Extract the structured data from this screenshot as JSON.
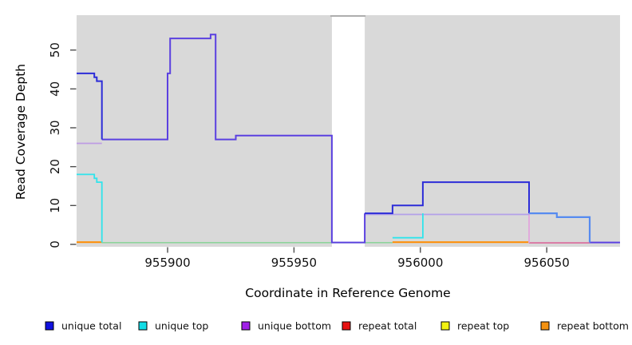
{
  "figure": {
    "kind": "R coverage step plot",
    "background": "#ffffff",
    "plot_background": "#d9d9d9"
  },
  "chart_data": {
    "type": "line",
    "subtype": "step-post",
    "title": "",
    "xlabel": "Coordinate in Reference Genome",
    "ylabel": "Read Coverage Depth",
    "xlim": [
      955864,
      956079
    ],
    "ylim": [
      0,
      59
    ],
    "x_ticks": [
      955900,
      955950,
      956000,
      956050
    ],
    "y_ticks": [
      0,
      10,
      20,
      30,
      40,
      50
    ],
    "grid": false,
    "no_data_band": {
      "from": 955965,
      "to": 955978,
      "color": "#ffffff",
      "top_edge_color": "#a8a8a8"
    },
    "series": [
      {
        "name": "unique total",
        "color": "#1111e0",
        "points": [
          [
            955864,
            44
          ],
          [
            955871,
            43
          ],
          [
            955872,
            42
          ],
          [
            955874,
            27
          ],
          [
            955900,
            44
          ],
          [
            955901,
            53
          ],
          [
            955917,
            54
          ],
          [
            955919,
            27
          ],
          [
            955927,
            28
          ],
          [
            955965,
            0
          ],
          [
            955978,
            8
          ],
          [
            955989,
            10
          ],
          [
            956001,
            16
          ],
          [
            956043,
            8
          ],
          [
            956054,
            7
          ],
          [
            956067,
            0
          ],
          [
            956079,
            0
          ]
        ]
      },
      {
        "name": "unique top",
        "color": "#11dde6",
        "points": [
          [
            955864,
            18
          ],
          [
            955871,
            17
          ],
          [
            955872,
            16
          ],
          [
            955874,
            0
          ],
          [
            955989,
            2
          ],
          [
            956001,
            8
          ],
          [
            956054,
            7
          ],
          [
            956067,
            0
          ],
          [
            956079,
            0
          ]
        ]
      },
      {
        "name": "unique bottom",
        "color": "#a020e8",
        "points": [
          [
            955864,
            26
          ],
          [
            955874,
            27
          ],
          [
            955900,
            44
          ],
          [
            955901,
            53
          ],
          [
            955917,
            54
          ],
          [
            955919,
            27
          ],
          [
            955927,
            28
          ],
          [
            955965,
            0
          ],
          [
            955978,
            8
          ],
          [
            956043,
            0
          ],
          [
            956079,
            0
          ]
        ]
      },
      {
        "name": "repeat total",
        "color": "#e61111",
        "points": [
          [
            955864,
            0
          ],
          [
            956043,
            0
          ],
          [
            956067,
            0
          ],
          [
            956079,
            0
          ]
        ]
      },
      {
        "name": "repeat top",
        "color": "#f2f211",
        "points": [
          [
            955864,
            0
          ],
          [
            956079,
            0
          ]
        ]
      },
      {
        "name": "repeat bottom",
        "color": "#f29111",
        "points": [
          [
            955864,
            0
          ],
          [
            955874,
            0
          ],
          [
            955989,
            0
          ],
          [
            956043,
            0
          ],
          [
            956079,
            0
          ]
        ]
      }
    ],
    "render_segments": [
      {
        "name": "zero-line-green-blend",
        "color": "#8fd49c",
        "width": 1.6,
        "pts": [
          [
            955874,
            0.45
          ],
          [
            955989,
            0.45
          ]
        ]
      },
      {
        "name": "zero-line-orange-left",
        "color": "#ff8c00",
        "width": 2.0,
        "pts": [
          [
            955864,
            0.55
          ],
          [
            955874,
            0.55
          ]
        ]
      },
      {
        "name": "zero-line-orange-mid",
        "color": "#ff8c00",
        "width": 2.0,
        "pts": [
          [
            955989,
            0.55
          ],
          [
            956043,
            0.55
          ]
        ]
      },
      {
        "name": "zero-line-pink-blend",
        "color": "#db6f9e",
        "width": 1.8,
        "pts": [
          [
            956043,
            0.4
          ],
          [
            956067,
            0.4
          ]
        ]
      },
      {
        "name": "unique-bottom-left",
        "color": "#be9be3",
        "width": 1.8,
        "pts": [
          [
            955864,
            26
          ],
          [
            955874,
            26
          ]
        ]
      },
      {
        "name": "unique-bottom-drop",
        "color": "#e2a6dc",
        "width": 1.8,
        "pts": [
          [
            956043,
            8
          ],
          [
            956043,
            0.4
          ]
        ]
      },
      {
        "name": "unique-bottom-mid",
        "color": "#b3a0e8",
        "width": 1.8,
        "pts": [
          [
            955978,
            7.7
          ],
          [
            956043,
            7.7
          ]
        ]
      },
      {
        "name": "unique-top-left",
        "color": "#2fe4ec",
        "width": 1.8,
        "pts": [
          [
            955864,
            18
          ],
          [
            955871,
            18
          ],
          [
            955871,
            17
          ],
          [
            955872,
            17
          ],
          [
            955872,
            16
          ],
          [
            955874,
            16
          ],
          [
            955874,
            0.45
          ]
        ]
      },
      {
        "name": "unique-top-rise",
        "color": "#2fe4ec",
        "width": 1.8,
        "pts": [
          [
            955989,
            1.7
          ],
          [
            956001,
            1.7
          ],
          [
            956001,
            8
          ]
        ]
      },
      {
        "name": "unique-total-violet-blend",
        "color": "#5b41e0",
        "width": 2.0,
        "pts": [
          [
            955874,
            27
          ],
          [
            955900,
            27
          ],
          [
            955900,
            44
          ],
          [
            955901,
            44
          ],
          [
            955901,
            53
          ],
          [
            955917,
            53
          ],
          [
            955917,
            54
          ],
          [
            955919,
            54
          ],
          [
            955919,
            27
          ],
          [
            955927,
            27
          ],
          [
            955927,
            28
          ],
          [
            955965,
            28
          ],
          [
            955965,
            0.5
          ],
          [
            955978,
            0.5
          ],
          [
            955978,
            8
          ]
        ]
      },
      {
        "name": "zero-line-violet-right",
        "color": "#5b41e0",
        "width": 2.0,
        "pts": [
          [
            956067,
            0.5
          ],
          [
            956079,
            0.5
          ]
        ]
      },
      {
        "name": "unique-total-left",
        "color": "#2d2dd8",
        "width": 2.0,
        "pts": [
          [
            955864,
            44
          ],
          [
            955871,
            44
          ],
          [
            955871,
            43
          ],
          [
            955872,
            43
          ],
          [
            955872,
            42
          ],
          [
            955874,
            42
          ],
          [
            955874,
            27
          ]
        ]
      },
      {
        "name": "unique-total-right",
        "color": "#2d2dd8",
        "width": 2.0,
        "pts": [
          [
            955978,
            8
          ],
          [
            955989,
            8
          ],
          [
            955989,
            10
          ],
          [
            956001,
            10
          ],
          [
            956001,
            16
          ],
          [
            956043,
            16
          ],
          [
            956043,
            8
          ]
        ]
      },
      {
        "name": "unique-total-cornflower",
        "color": "#568bf0",
        "width": 2.2,
        "pts": [
          [
            956043,
            8
          ],
          [
            956054,
            8
          ],
          [
            956054,
            7
          ],
          [
            956067,
            7
          ],
          [
            956067,
            0.5
          ]
        ]
      }
    ],
    "legend": {
      "position": "bottom",
      "items": [
        {
          "label": "unique total",
          "color": "#1111e0"
        },
        {
          "label": "unique top",
          "color": "#11dde6"
        },
        {
          "label": "unique bottom",
          "color": "#a020e8"
        },
        {
          "label": "repeat total",
          "color": "#e61111"
        },
        {
          "label": "repeat top",
          "color": "#f2f211"
        },
        {
          "label": "repeat bottom",
          "color": "#f29111"
        }
      ]
    }
  }
}
